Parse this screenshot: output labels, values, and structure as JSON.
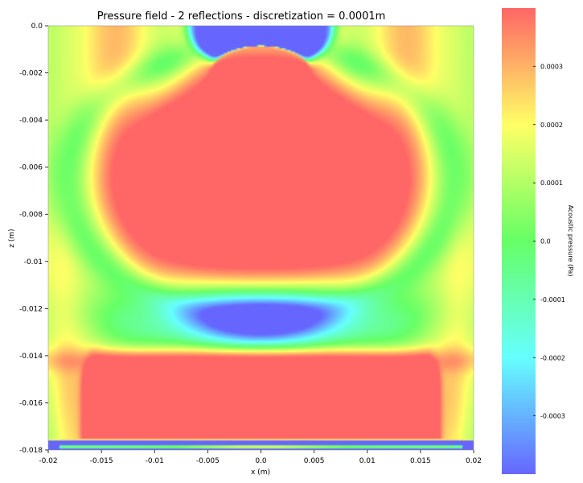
{
  "chart_data": {
    "type": "heatmap",
    "title": "Pressure field - 2 reflections - discretization = 0.0001m",
    "xlabel": "x (m)",
    "ylabel": "z (m)",
    "xlim": [
      -0.02,
      0.02
    ],
    "ylim": [
      -0.018,
      0.0
    ],
    "x_ticks": [
      "-0.02",
      "-0.015",
      "-0.01",
      "-0.005",
      "0.0",
      "0.005",
      "0.01",
      "0.015",
      "0.02"
    ],
    "x_tick_values": [
      -0.02,
      -0.015,
      -0.01,
      -0.005,
      0.0,
      0.005,
      0.01,
      0.015,
      0.02
    ],
    "y_ticks": [
      "0.0",
      "-0.002",
      "-0.004",
      "-0.006",
      "-0.008",
      "-0.01",
      "-0.012",
      "-0.014",
      "-0.016",
      "-0.018"
    ],
    "y_tick_values": [
      0.0,
      -0.002,
      -0.004,
      -0.006,
      -0.008,
      -0.01,
      -0.012,
      -0.014,
      -0.016,
      -0.018
    ],
    "colorbar": {
      "label": "Acoustic pressure (Pa)",
      "range": [
        -0.0004,
        0.0004
      ],
      "ticks": [
        "0.0003",
        "0.0002",
        "0.0001",
        "0.0",
        "-0.0001",
        "-0.0002",
        "-0.0003"
      ],
      "tick_values": [
        0.0003,
        0.0002,
        0.0001,
        0.0,
        -0.0001,
        -0.0002,
        -0.0003
      ],
      "colors": [
        "#6666ff",
        "#66ffff",
        "#66ff66",
        "#ffff66",
        "#ff6666"
      ]
    },
    "grid": false,
    "field_features": [
      {
        "name": "upper-cap",
        "sign": "positive",
        "center_x": 0.0,
        "center_z": -0.003,
        "approx_value": 0.0004
      },
      {
        "name": "upper-lobe",
        "sign": "positive",
        "center_x": 0.0,
        "center_z": -0.0075,
        "approx_value": 0.0004
      },
      {
        "name": "source-minimum",
        "sign": "negative",
        "center_x": 0.0,
        "center_z": -0.0005,
        "approx_value": -0.0004
      },
      {
        "name": "middle-minimum",
        "sign": "negative",
        "center_x": 0.0,
        "center_z": -0.0126,
        "approx_value": -0.0004
      },
      {
        "name": "lower-band",
        "sign": "positive",
        "center_x": 0.0,
        "center_z": -0.0163,
        "approx_value": 0.0004
      },
      {
        "name": "bottom-strip",
        "sign": "negative",
        "center_x": 0.0,
        "center_z": -0.0179,
        "approx_value": -0.0004
      }
    ]
  }
}
